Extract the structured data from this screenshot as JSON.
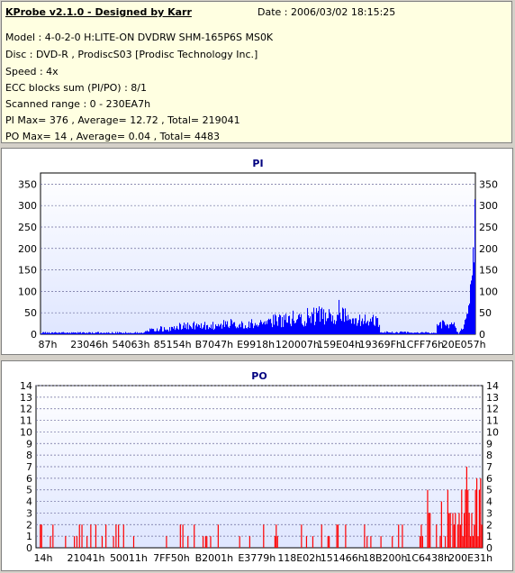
{
  "header": {
    "app_title": "KProbe v2.1.0 - Designed by Karr",
    "date": "Date : 2006/03/02 18:15:25",
    "lines": [
      "Model : 4-0-2-0 H:LITE-ON DVDRW SHM-165P6S MS0K",
      "Disc : DVD-R , ProdiscS03   [Prodisc Technology Inc.]",
      "Speed : 4x",
      "ECC blocks sum (PI/PO) : 8/1",
      "Scanned range : 0 - 230EA7h",
      "PI Max= 376 , Average= 12.72 , Total= 219041",
      "PO Max= 14 , Average= 0.04 , Total= 4483"
    ]
  },
  "colors": {
    "pi_bars": "#0000ff",
    "po_bars": "#ff0000",
    "plot_bg_top": "#ffffff",
    "plot_bg_bottom": "#dfe6ff",
    "title_color": "#000080"
  },
  "chart_data": [
    {
      "type": "bar",
      "title": "PI",
      "xlabel": "",
      "ylabel": "",
      "x_tick_labels": [
        "87h",
        "23046h",
        "54063h",
        "85154h",
        "B7047h",
        "E9918h",
        "120007h",
        "159E04h",
        "19369Fh",
        "1CFF76h",
        "20E057h"
      ],
      "y_ticks": [
        0,
        50,
        100,
        150,
        200,
        250,
        300,
        350
      ],
      "ylim": [
        0,
        376
      ],
      "grid": true,
      "profile": [
        {
          "from": 0.0,
          "to": 0.24,
          "level": 4
        },
        {
          "from": 0.24,
          "to": 0.31,
          "level": 14
        },
        {
          "from": 0.31,
          "to": 0.42,
          "level": 22
        },
        {
          "from": 0.42,
          "to": 0.53,
          "level": 27
        },
        {
          "from": 0.53,
          "to": 0.61,
          "level": 36
        },
        {
          "from": 0.61,
          "to": 0.7,
          "level": 46
        },
        {
          "from": 0.7,
          "to": 0.78,
          "level": 35
        },
        {
          "from": 0.78,
          "to": 0.85,
          "level": 5
        },
        {
          "from": 0.85,
          "to": 0.91,
          "level": 4
        },
        {
          "from": 0.91,
          "to": 0.955,
          "level": 25
        },
        {
          "from": 0.955,
          "to": 1.0,
          "level": 376
        }
      ],
      "peaks": [
        {
          "at": 0.685,
          "value": 80
        },
        {
          "at": 0.64,
          "value": 65
        },
        {
          "at": 0.58,
          "value": 55
        }
      ]
    },
    {
      "type": "bar",
      "title": "PO",
      "xlabel": "",
      "ylabel": "",
      "x_tick_labels": [
        "14h",
        "21041h",
        "50011h",
        "7FF50h",
        "B2001h",
        "E3779h",
        "118E02h",
        "151466h",
        "18B200h",
        "1C6438h",
        "200E31h"
      ],
      "y_ticks": [
        0,
        1,
        2,
        3,
        4,
        5,
        6,
        7,
        8,
        9,
        10,
        11,
        12,
        13,
        14
      ],
      "ylim": [
        0,
        14
      ],
      "grid": true,
      "profile": [
        {
          "from": 0.0,
          "to": 0.81,
          "level": 0.6
        },
        {
          "from": 0.81,
          "to": 0.9,
          "level": 1.6
        },
        {
          "from": 0.9,
          "to": 0.95,
          "level": 2.4
        },
        {
          "from": 0.95,
          "to": 1.0,
          "level": 4.0
        }
      ],
      "peaks": [
        {
          "at": 0.962,
          "value": 7
        },
        {
          "at": 0.985,
          "value": 6
        },
        {
          "at": 0.92,
          "value": 5
        },
        {
          "at": 0.875,
          "value": 5
        }
      ]
    }
  ]
}
